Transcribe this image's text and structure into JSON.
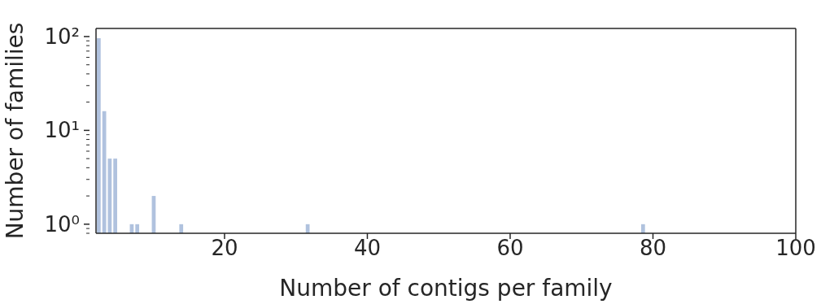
{
  "chart_data": {
    "type": "histogram",
    "xlabel": "Number of contigs per family",
    "ylabel": "Number of families",
    "bins": [
      2,
      2.77,
      3.54,
      4.31,
      5.08,
      5.85,
      6.62,
      7.39,
      8.16,
      8.93,
      9.7,
      10.47,
      11.24,
      12.01,
      12.78,
      13.55,
      14.32,
      15.09,
      15.86,
      16.63,
      17.4,
      18.17,
      18.94,
      19.71,
      20.48,
      21.25,
      22.02,
      22.79,
      23.56,
      24.33,
      25.1,
      25.87,
      26.64,
      27.41,
      28.18,
      28.95,
      29.72,
      30.49,
      31.26,
      32.03,
      32.8,
      33.57,
      34.34,
      35.11,
      35.88,
      36.65,
      37.42,
      38.19,
      38.96,
      39.73,
      40.5,
      41.27,
      42.04,
      42.81,
      43.58,
      44.35,
      45.12,
      45.89,
      46.66,
      47.43,
      48.2,
      48.97,
      49.74,
      50.51,
      51.28,
      52.05,
      52.82,
      53.59,
      54.36,
      55.13,
      55.9,
      56.67,
      57.44,
      58.21,
      58.98,
      59.75,
      60.52,
      61.29,
      62.06,
      62.83,
      63.6,
      64.37,
      65.14,
      65.91,
      66.68,
      67.45,
      68.22,
      68.99,
      69.76,
      70.53,
      71.3,
      72.07,
      72.84,
      73.61,
      74.38,
      75.15,
      75.92,
      76.69,
      77.46,
      78.23,
      79
    ],
    "values": [
      96,
      16,
      5,
      5,
      null,
      null,
      1,
      1,
      null,
      null,
      2,
      null,
      null,
      null,
      null,
      1,
      null,
      null,
      null,
      null,
      null,
      null,
      null,
      null,
      null,
      null,
      null,
      null,
      null,
      null,
      null,
      null,
      null,
      null,
      null,
      null,
      null,
      null,
      1,
      null,
      null,
      null,
      null,
      null,
      null,
      null,
      null,
      null,
      null,
      null,
      null,
      null,
      null,
      null,
      null,
      null,
      null,
      null,
      null,
      null,
      null,
      null,
      null,
      null,
      null,
      null,
      null,
      null,
      null,
      null,
      null,
      null,
      null,
      null,
      null,
      null,
      null,
      null,
      null,
      null,
      null,
      null,
      null,
      null,
      null,
      null,
      null,
      null,
      null,
      null,
      null,
      null,
      null,
      null,
      null,
      null,
      null,
      null,
      null,
      1
    ],
    "color": "#b0c2de",
    "log": "y",
    "xlim": [
      2,
      100
    ],
    "xticks": [
      20,
      40,
      60,
      80,
      100
    ],
    "ylim": [
      0.8,
      122
    ],
    "yticks": [
      {
        "value": 0.8,
        "label": null
      },
      {
        "value": 0.9,
        "label": null
      },
      {
        "value": 1,
        "label": "10⁰"
      },
      {
        "value": 2,
        "label": null
      },
      {
        "value": 3,
        "label": null
      },
      {
        "value": 4,
        "label": null
      },
      {
        "value": 5,
        "label": null
      },
      {
        "value": 6,
        "label": null
      },
      {
        "value": 7,
        "label": null
      },
      {
        "value": 8,
        "label": null
      },
      {
        "value": 9,
        "label": null
      },
      {
        "value": 10,
        "label": "10¹"
      },
      {
        "value": 20,
        "label": null
      },
      {
        "value": 30,
        "label": null
      },
      {
        "value": 40,
        "label": null
      },
      {
        "value": 50,
        "label": null
      },
      {
        "value": 60,
        "label": null
      },
      {
        "value": 70,
        "label": null
      },
      {
        "value": 80,
        "label": null
      },
      {
        "value": 90,
        "label": null
      },
      {
        "value": 100,
        "label": "10²"
      }
    ]
  }
}
